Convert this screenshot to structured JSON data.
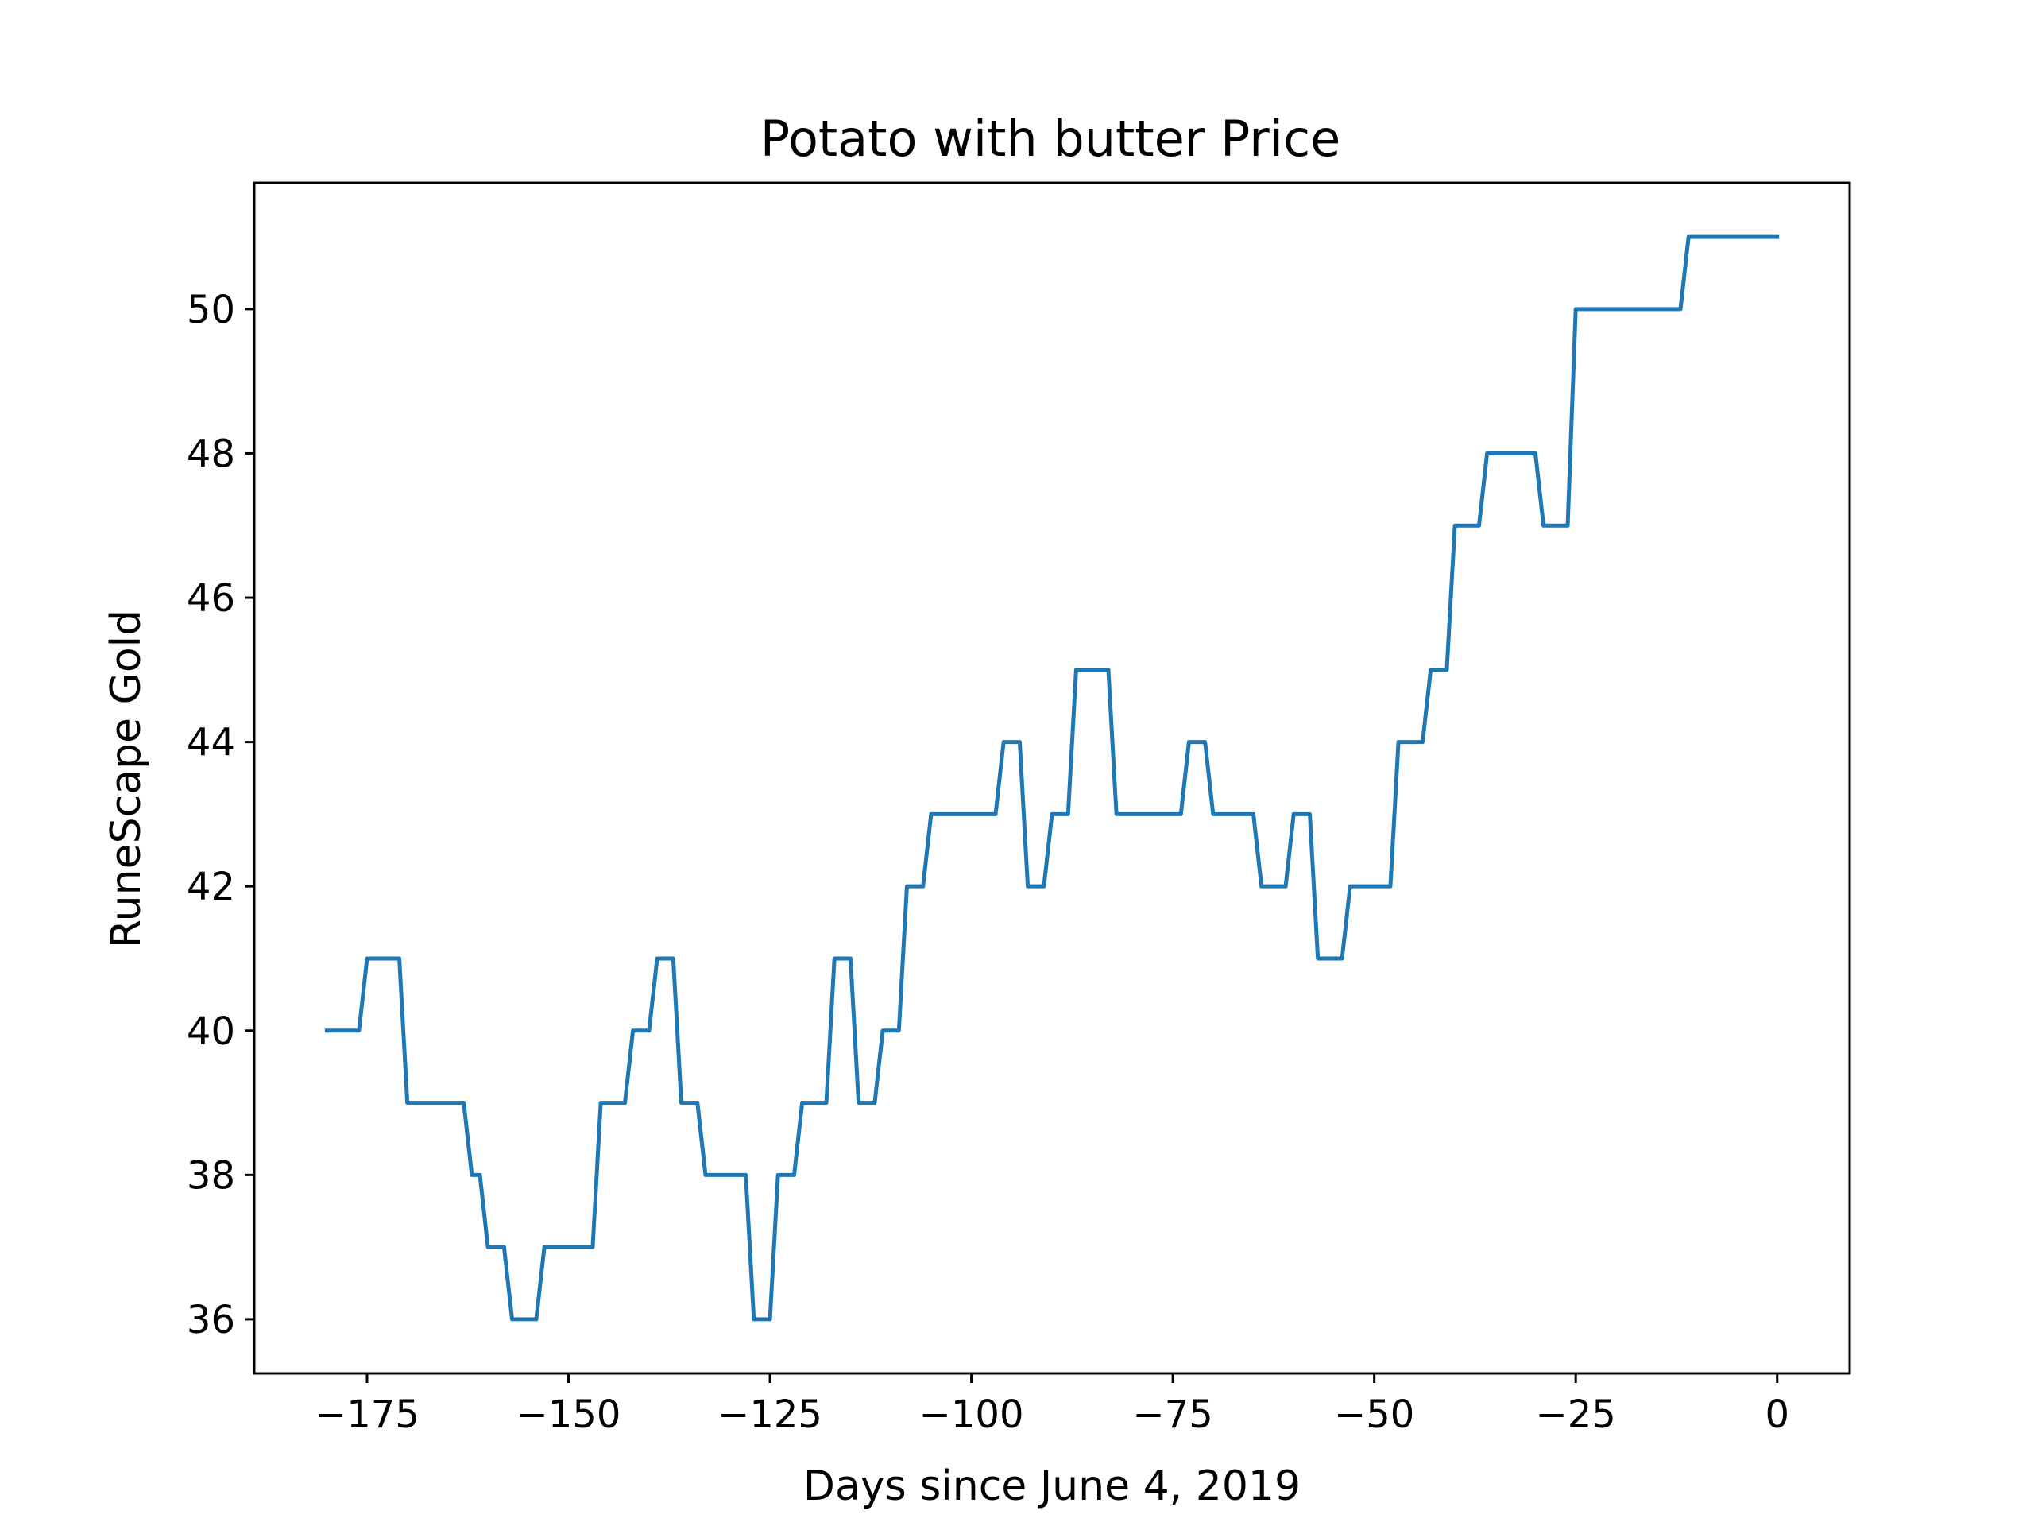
{
  "chart_data": {
    "type": "line",
    "title": "Potato with butter Price",
    "xlabel": "Days since June 4, 2019",
    "ylabel": "RuneScape Gold",
    "xlim": [
      -189,
      9
    ],
    "ylim": [
      35.25,
      51.75
    ],
    "grid": false,
    "x_ticks": [
      -175,
      -150,
      -125,
      -100,
      -75,
      -50,
      -25,
      0
    ],
    "x_tick_labels": [
      "−175",
      "−150",
      "−125",
      "−100",
      "−75",
      "−50",
      "−25",
      "0"
    ],
    "y_ticks": [
      36,
      38,
      40,
      42,
      44,
      46,
      48,
      50
    ],
    "y_tick_labels": [
      "36",
      "38",
      "40",
      "42",
      "44",
      "46",
      "48",
      "50"
    ],
    "series": [
      {
        "color": "#1f77b4",
        "points": [
          [
            -180,
            40
          ],
          [
            -176,
            40
          ],
          [
            -175,
            41
          ],
          [
            -171,
            41
          ],
          [
            -170,
            39
          ],
          [
            -163,
            39
          ],
          [
            -162,
            38
          ],
          [
            -161,
            38
          ],
          [
            -160,
            37
          ],
          [
            -158,
            37
          ],
          [
            -157,
            36
          ],
          [
            -154,
            36
          ],
          [
            -153,
            37
          ],
          [
            -147,
            37
          ],
          [
            -146,
            39
          ],
          [
            -143,
            39
          ],
          [
            -142,
            40
          ],
          [
            -140,
            40
          ],
          [
            -139,
            41
          ],
          [
            -137,
            41
          ],
          [
            -136,
            39
          ],
          [
            -134,
            39
          ],
          [
            -133,
            38
          ],
          [
            -128,
            38
          ],
          [
            -127,
            36
          ],
          [
            -125,
            36
          ],
          [
            -124,
            38
          ],
          [
            -122,
            38
          ],
          [
            -121,
            39
          ],
          [
            -118,
            39
          ],
          [
            -117,
            41
          ],
          [
            -115,
            41
          ],
          [
            -114,
            39
          ],
          [
            -112,
            39
          ],
          [
            -111,
            40
          ],
          [
            -109,
            40
          ],
          [
            -108,
            42
          ],
          [
            -106,
            42
          ],
          [
            -105,
            43
          ],
          [
            -97,
            43
          ],
          [
            -96,
            44
          ],
          [
            -94,
            44
          ],
          [
            -93,
            42
          ],
          [
            -91,
            42
          ],
          [
            -90,
            43
          ],
          [
            -88,
            43
          ],
          [
            -87,
            45
          ],
          [
            -83,
            45
          ],
          [
            -82,
            43
          ],
          [
            -74,
            43
          ],
          [
            -73,
            44
          ],
          [
            -71,
            44
          ],
          [
            -70,
            43
          ],
          [
            -65,
            43
          ],
          [
            -64,
            42
          ],
          [
            -61,
            42
          ],
          [
            -60,
            43
          ],
          [
            -58,
            43
          ],
          [
            -57,
            41
          ],
          [
            -54,
            41
          ],
          [
            -53,
            42
          ],
          [
            -48,
            42
          ],
          [
            -47,
            44
          ],
          [
            -44,
            44
          ],
          [
            -43,
            45
          ],
          [
            -41,
            45
          ],
          [
            -40,
            47
          ],
          [
            -37,
            47
          ],
          [
            -36,
            48
          ],
          [
            -30,
            48
          ],
          [
            -29,
            47
          ],
          [
            -26,
            47
          ],
          [
            -25,
            50
          ],
          [
            -12,
            50
          ],
          [
            -11,
            51
          ],
          [
            0,
            51
          ]
        ]
      }
    ]
  }
}
